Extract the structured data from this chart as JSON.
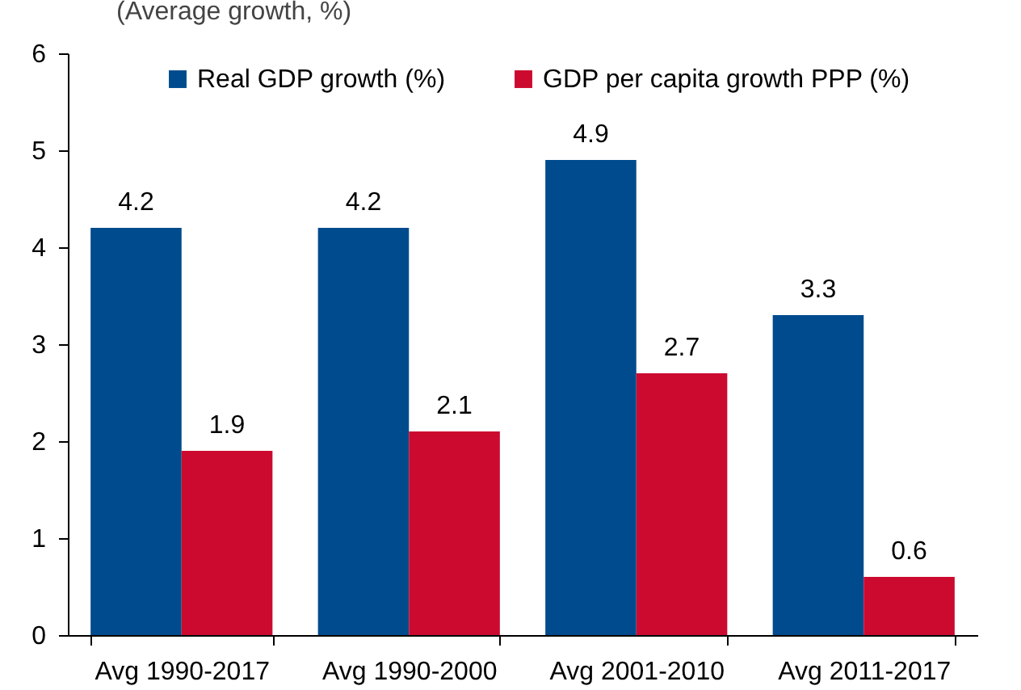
{
  "chart_data": {
    "type": "bar",
    "subtitle": "(Average growth, %)",
    "categories": [
      "Avg 1990-2017",
      "Avg 1990-2000",
      "Avg 2001-2010",
      "Avg 2011-2017"
    ],
    "series": [
      {
        "name": "Real GDP growth (%)",
        "color": "#004b8d",
        "values": [
          4.2,
          4.2,
          4.9,
          3.3
        ]
      },
      {
        "name": "GDP per capita growth PPP (%)",
        "color": "#cc0a2f",
        "values": [
          1.9,
          2.1,
          2.7,
          0.6
        ]
      }
    ],
    "ylim": [
      0,
      6
    ],
    "yticks": [
      0,
      1,
      2,
      3,
      4,
      5,
      6
    ],
    "grid": false,
    "legend": "top",
    "data_labels": true
  }
}
